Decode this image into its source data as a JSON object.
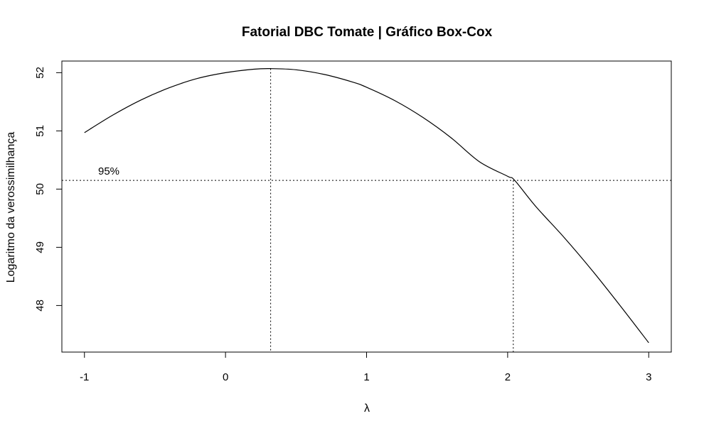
{
  "chart_data": {
    "type": "line",
    "title": "Fatorial DBC Tomate | Gráfico Box-Cox",
    "xlabel": "λ",
    "ylabel": "Logaritmo da verossimilhança",
    "xlim": [
      -1.16,
      3.16
    ],
    "ylim": [
      47.2,
      52.2
    ],
    "xticks": [
      -1,
      0,
      1,
      2,
      3
    ],
    "xtick_labels": [
      "-1",
      "0",
      "1",
      "2",
      "3"
    ],
    "yticks": [
      48,
      49,
      50,
      51,
      52
    ],
    "ytick_labels": [
      "48",
      "49",
      "50",
      "51",
      "52"
    ],
    "grid": false,
    "series": [
      {
        "x": [
          -1.0,
          -0.8,
          -0.6,
          -0.4,
          -0.2,
          0.0,
          0.2,
          0.32,
          0.5,
          0.7,
          0.9,
          1.0,
          1.2,
          1.4,
          1.6,
          1.8,
          2.0,
          2.05,
          2.2,
          2.4,
          2.6,
          2.8,
          3.0
        ],
        "y": [
          50.97,
          51.27,
          51.53,
          51.74,
          51.9,
          52.0,
          52.06,
          52.07,
          52.05,
          51.97,
          51.84,
          51.75,
          51.52,
          51.23,
          50.88,
          50.47,
          50.22,
          50.15,
          49.7,
          49.17,
          48.6,
          47.99,
          47.36
        ]
      }
    ],
    "reference_lines": {
      "ci_level": 50.15,
      "ci_label": "95%",
      "lambda_hat": 0.32,
      "ci_upper": 2.04
    }
  }
}
